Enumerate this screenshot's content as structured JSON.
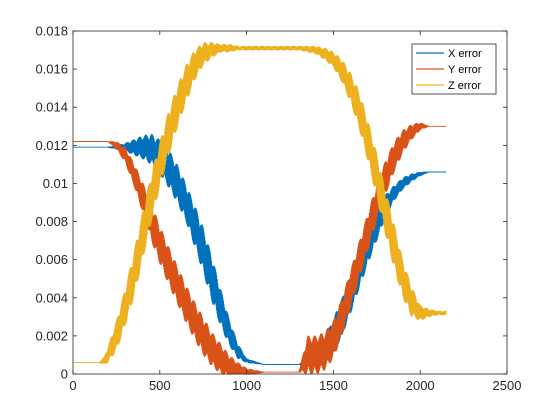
{
  "chart_data": {
    "type": "line",
    "title": "",
    "xlabel": "",
    "ylabel": "",
    "xlim": [
      0,
      2500
    ],
    "ylim": [
      0,
      0.018
    ],
    "xticks": [
      0,
      500,
      1000,
      1500,
      2000,
      2500
    ],
    "xtick_labels": [
      "0",
      "500",
      "1000",
      "1500",
      "2000",
      "2500"
    ],
    "yticks": [
      0,
      0.002,
      0.004,
      0.006,
      0.008,
      0.01,
      0.012,
      0.014,
      0.016,
      0.018
    ],
    "ytick_labels": [
      "0",
      "0.002",
      "0.004",
      "0.006",
      "0.008",
      "0.01",
      "0.012",
      "0.014",
      "0.016",
      "0.018"
    ],
    "grid": false,
    "legend_position": "top-right",
    "series": [
      {
        "name": "X error",
        "color": "#0072BD",
        "x": [
          0,
          200,
          300,
          400,
          450,
          500,
          550,
          600,
          650,
          700,
          750,
          800,
          850,
          900,
          950,
          1000,
          1100,
          1200,
          1300,
          1350,
          1400,
          1450,
          1500,
          1550,
          1600,
          1650,
          1700,
          1750,
          1800,
          1850,
          1900,
          1950,
          2000,
          2050,
          2100,
          2150
        ],
        "y": [
          0.0119,
          0.0119,
          0.0119,
          0.0119,
          0.0118,
          0.0114,
          0.0108,
          0.01,
          0.009,
          0.0078,
          0.0065,
          0.005,
          0.0035,
          0.0022,
          0.0012,
          0.0007,
          0.0005,
          0.0005,
          0.0005,
          0.0006,
          0.0008,
          0.0012,
          0.002,
          0.003,
          0.0042,
          0.0055,
          0.0067,
          0.0078,
          0.0088,
          0.0095,
          0.01,
          0.0103,
          0.0105,
          0.0106,
          0.0106,
          0.0106
        ],
        "noise": [
          0,
          0,
          0.0002,
          0.0006,
          0.0008,
          0.0009,
          0.001,
          0.001,
          0.001,
          0.0011,
          0.0012,
          0.0012,
          0.001,
          0.0007,
          0.0004,
          0.0001,
          0,
          0,
          0,
          0.0002,
          0.0004,
          0.0007,
          0.0009,
          0.001,
          0.001,
          0.001,
          0.0009,
          0.0008,
          0.0006,
          0.0004,
          0.0003,
          0.0002,
          0.0001,
          0,
          0,
          0
        ]
      },
      {
        "name": "Y error",
        "color": "#D95319",
        "x": [
          0,
          200,
          250,
          300,
          350,
          400,
          450,
          500,
          550,
          600,
          650,
          700,
          750,
          800,
          850,
          900,
          950,
          1000,
          1100,
          1200,
          1300,
          1350,
          1400,
          1450,
          1500,
          1550,
          1600,
          1650,
          1700,
          1750,
          1800,
          1850,
          1900,
          1950,
          2000,
          2050,
          2100,
          2150
        ],
        "y": [
          0.0122,
          0.0122,
          0.012,
          0.0115,
          0.0105,
          0.0093,
          0.008,
          0.0068,
          0.0057,
          0.0047,
          0.0037,
          0.0028,
          0.002,
          0.0013,
          0.0008,
          0.0004,
          0.0002,
          0.0001,
          0.0001,
          0.0001,
          0.0001,
          0.001,
          0.001,
          0.0012,
          0.0018,
          0.003,
          0.0045,
          0.006,
          0.0075,
          0.009,
          0.0103,
          0.0114,
          0.0122,
          0.0127,
          0.013,
          0.013,
          0.013,
          0.013
        ],
        "noise": [
          0,
          0,
          0.0002,
          0.0004,
          0.0006,
          0.0008,
          0.001,
          0.001,
          0.001,
          0.001,
          0.001,
          0.001,
          0.001,
          0.0009,
          0.0008,
          0.0006,
          0.0004,
          0.0002,
          0,
          0,
          0,
          0.001,
          0.001,
          0.001,
          0.001,
          0.001,
          0.001,
          0.001,
          0.001,
          0.001,
          0.0009,
          0.0008,
          0.0006,
          0.0004,
          0.0002,
          0,
          0,
          0
        ]
      },
      {
        "name": "Z error",
        "color": "#EDB120",
        "x": [
          0,
          150,
          180,
          200,
          250,
          300,
          350,
          400,
          450,
          500,
          550,
          600,
          650,
          700,
          750,
          800,
          850,
          900,
          950,
          1000,
          1100,
          1200,
          1300,
          1400,
          1450,
          1500,
          1550,
          1600,
          1650,
          1700,
          1750,
          1800,
          1850,
          1900,
          1950,
          2000,
          2050,
          2100,
          2150
        ],
        "y": [
          0.0006,
          0.0006,
          0.0007,
          0.001,
          0.002,
          0.0035,
          0.0052,
          0.0072,
          0.0092,
          0.011,
          0.0126,
          0.014,
          0.0152,
          0.0162,
          0.0168,
          0.017,
          0.0171,
          0.0171,
          0.0171,
          0.0171,
          0.0171,
          0.0171,
          0.0171,
          0.017,
          0.0168,
          0.0165,
          0.0159,
          0.015,
          0.0138,
          0.0122,
          0.0104,
          0.0085,
          0.0067,
          0.005,
          0.0038,
          0.0032,
          0.0032,
          0.0032,
          0.0032
        ],
        "noise": [
          0,
          0,
          0.0002,
          0.0004,
          0.0008,
          0.001,
          0.0012,
          0.0013,
          0.0013,
          0.0012,
          0.0012,
          0.0011,
          0.001,
          0.0008,
          0.0006,
          0.0004,
          0.0002,
          0.0002,
          0.0001,
          0.0001,
          0.0001,
          0.0001,
          0.0001,
          0.0002,
          0.0003,
          0.0004,
          0.0006,
          0.0008,
          0.001,
          0.0011,
          0.0012,
          0.0012,
          0.0012,
          0.001,
          0.0008,
          0.0004,
          0.0002,
          0.0001,
          0.0001
        ]
      }
    ]
  }
}
